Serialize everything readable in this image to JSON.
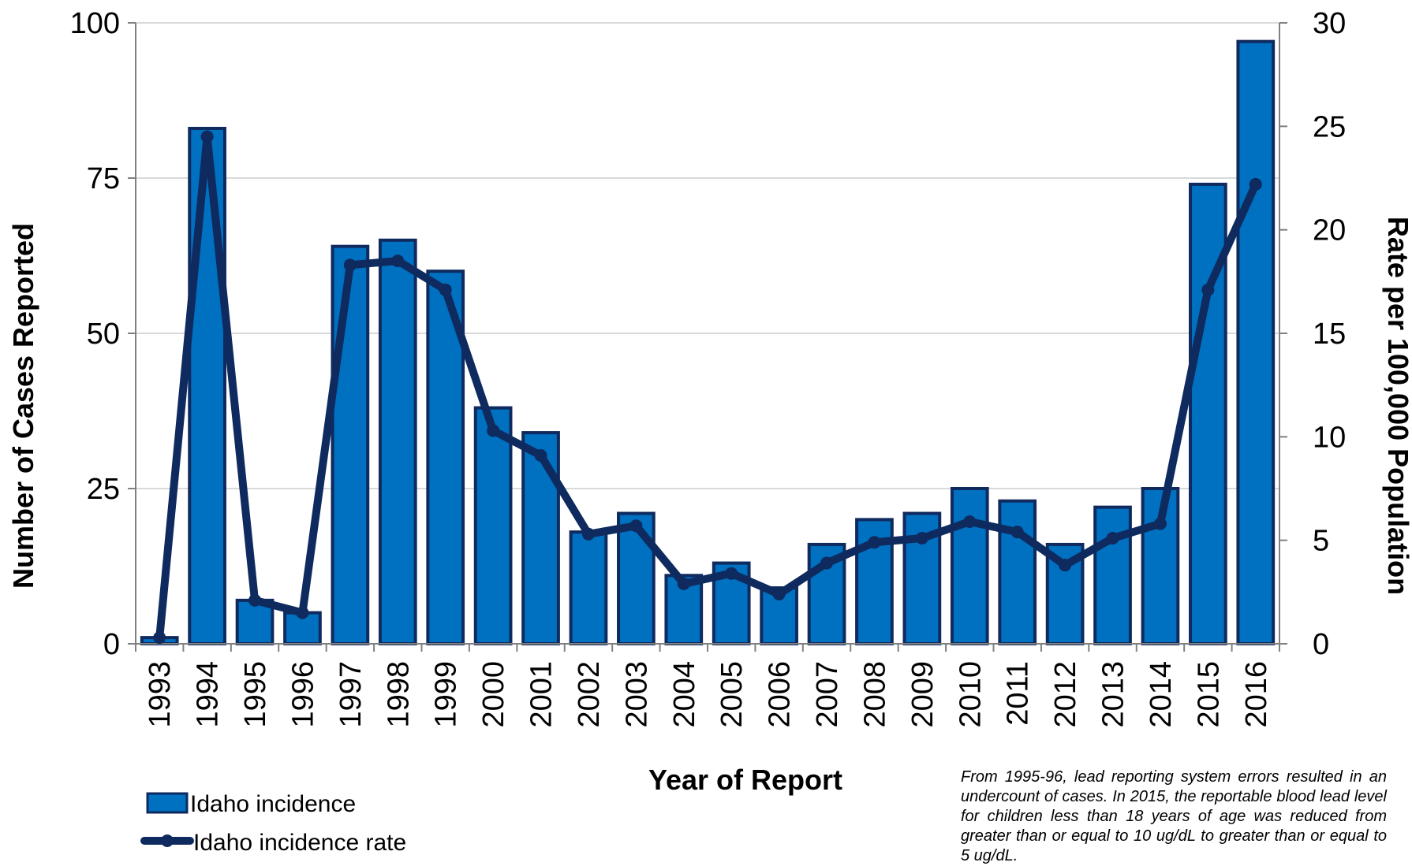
{
  "chart_data": {
    "type": "bar",
    "categories": [
      "1993",
      "1994",
      "1995",
      "1996",
      "1997",
      "1998",
      "1999",
      "2000",
      "2001",
      "2002",
      "2003",
      "2004",
      "2005",
      "2006",
      "2007",
      "2008",
      "2009",
      "2010",
      "2011",
      "2012",
      "2013",
      "2014",
      "2015",
      "2016"
    ],
    "series": [
      {
        "name": "Idaho incidence",
        "type": "bar",
        "axis": "left",
        "values": [
          1,
          83,
          7,
          5,
          64,
          65,
          60,
          38,
          34,
          18,
          21,
          11,
          13,
          9,
          16,
          20,
          21,
          25,
          23,
          16,
          22,
          25,
          74,
          97
        ]
      },
      {
        "name": "Idaho incidence rate",
        "type": "line",
        "axis": "right",
        "values": [
          0.3,
          24.5,
          2.1,
          1.5,
          18.3,
          18.5,
          17.1,
          10.3,
          9.1,
          5.3,
          5.7,
          2.9,
          3.4,
          2.4,
          3.9,
          4.9,
          5.1,
          5.9,
          5.4,
          3.8,
          5.1,
          5.8,
          17.1,
          22.2
        ]
      }
    ],
    "xlabel": "Year of Report",
    "ylabel": "Number of Cases Reported",
    "y2label": "Rate per 100,000 Population",
    "ylim": [
      0,
      100
    ],
    "y2lim": [
      0,
      30
    ],
    "yticks": [
      0,
      25,
      50,
      75,
      100
    ],
    "y2ticks": [
      0,
      5,
      10,
      15,
      20,
      25,
      30
    ],
    "grid": true,
    "legend": "bottom-left",
    "note": "From 1995-96, lead reporting system errors resulted in an undercount of cases. In 2015, the reportable blood lead level for children less than 18 years of age was reduced from greater than or equal to 10 ug/dL to greater than or equal to 5 ug/dL.",
    "colors": {
      "bar_fill": "#0070C0",
      "bar_stroke": "#0F2A5E",
      "line": "#0F2A5E",
      "grid": "#D9D9D9"
    }
  }
}
